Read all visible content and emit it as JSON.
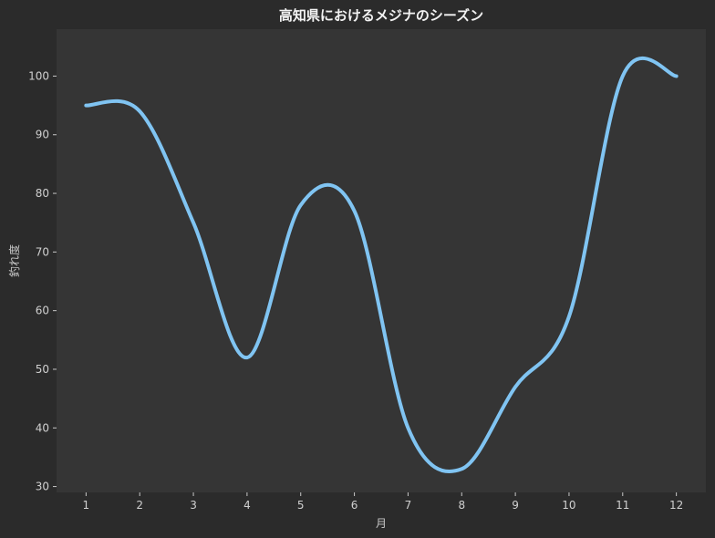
{
  "chart_data": {
    "type": "line",
    "title": "高知県におけるメジナのシーズン",
    "xlabel": "月",
    "ylabel": "釣れ度",
    "x": [
      1,
      2,
      3,
      4,
      5,
      6,
      7,
      8,
      9,
      10,
      11,
      12
    ],
    "x_ticks": [
      "1",
      "2",
      "3",
      "4",
      "5",
      "6",
      "7",
      "8",
      "9",
      "10",
      "11",
      "12"
    ],
    "y_ticks": [
      "30",
      "40",
      "50",
      "60",
      "70",
      "80",
      "90",
      "100"
    ],
    "xlim": [
      0.45,
      12.55
    ],
    "ylim": [
      29,
      108
    ],
    "series": [
      {
        "values": [
          95,
          94,
          75,
          52,
          78,
          77,
          40,
          33,
          47,
          59,
          100,
          100
        ],
        "smooth": true,
        "color": "#80c4f2"
      }
    ],
    "grid": false,
    "colors": {
      "background": "#2b2b2b",
      "plot_area": "#353535",
      "axis": "#c8c8c8",
      "line": "#80c4f2"
    }
  }
}
